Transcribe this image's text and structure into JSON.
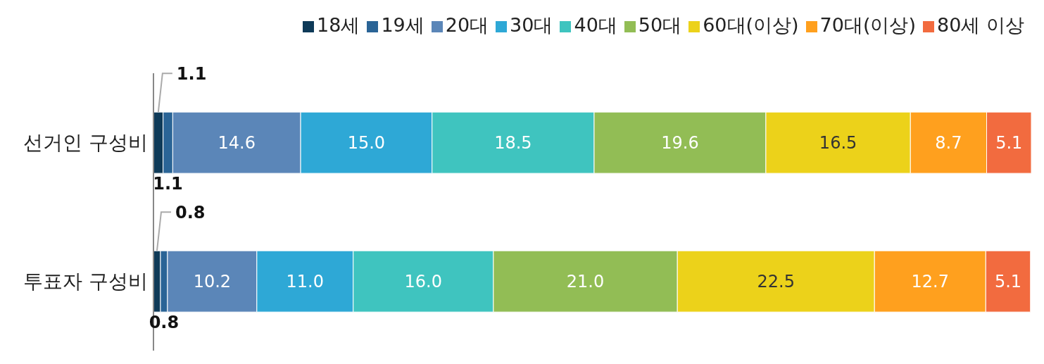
{
  "chart_data": {
    "type": "bar",
    "orientation": "horizontal",
    "stacked": true,
    "categories": [
      "선거인 구성비",
      "투표자 구성비"
    ],
    "series": [
      {
        "name": "18세",
        "color": "#0e3a58",
        "values": [
          1.1,
          0.8
        ],
        "value_labels": [
          "1.1",
          "0.8"
        ]
      },
      {
        "name": "19세",
        "color": "#2a6496",
        "values": [
          1.1,
          0.8
        ],
        "value_labels": [
          "1.1",
          "0.8"
        ]
      },
      {
        "name": "20대",
        "color": "#5b86b8",
        "values": [
          14.6,
          10.2
        ],
        "value_labels": [
          "14.6",
          "10.2"
        ]
      },
      {
        "name": "30대",
        "color": "#2ea8d6",
        "values": [
          15.0,
          11.0
        ],
        "value_labels": [
          "15.0",
          "11.0"
        ]
      },
      {
        "name": "40대",
        "color": "#3fc4bf",
        "values": [
          18.5,
          16.0
        ],
        "value_labels": [
          "18.5",
          "16.0"
        ]
      },
      {
        "name": "50대",
        "color": "#92bd55",
        "values": [
          19.6,
          21.0
        ],
        "value_labels": [
          "19.6",
          "21.0"
        ]
      },
      {
        "name": "60대(이상)",
        "color": "#ecd21a",
        "values": [
          16.5,
          22.5
        ],
        "value_labels": [
          "16.5",
          "22.5"
        ]
      },
      {
        "name": "70대(이상)",
        "color": "#ffa01e",
        "values": [
          8.7,
          12.7
        ],
        "value_labels": [
          "8.7",
          "12.7"
        ]
      },
      {
        "name": "80세 이상",
        "color": "#f26b3f",
        "values": [
          5.1,
          5.1
        ],
        "value_labels": [
          "5.1",
          "5.1"
        ]
      }
    ],
    "legend": "top right",
    "tick_labels": "y",
    "grid": false
  }
}
